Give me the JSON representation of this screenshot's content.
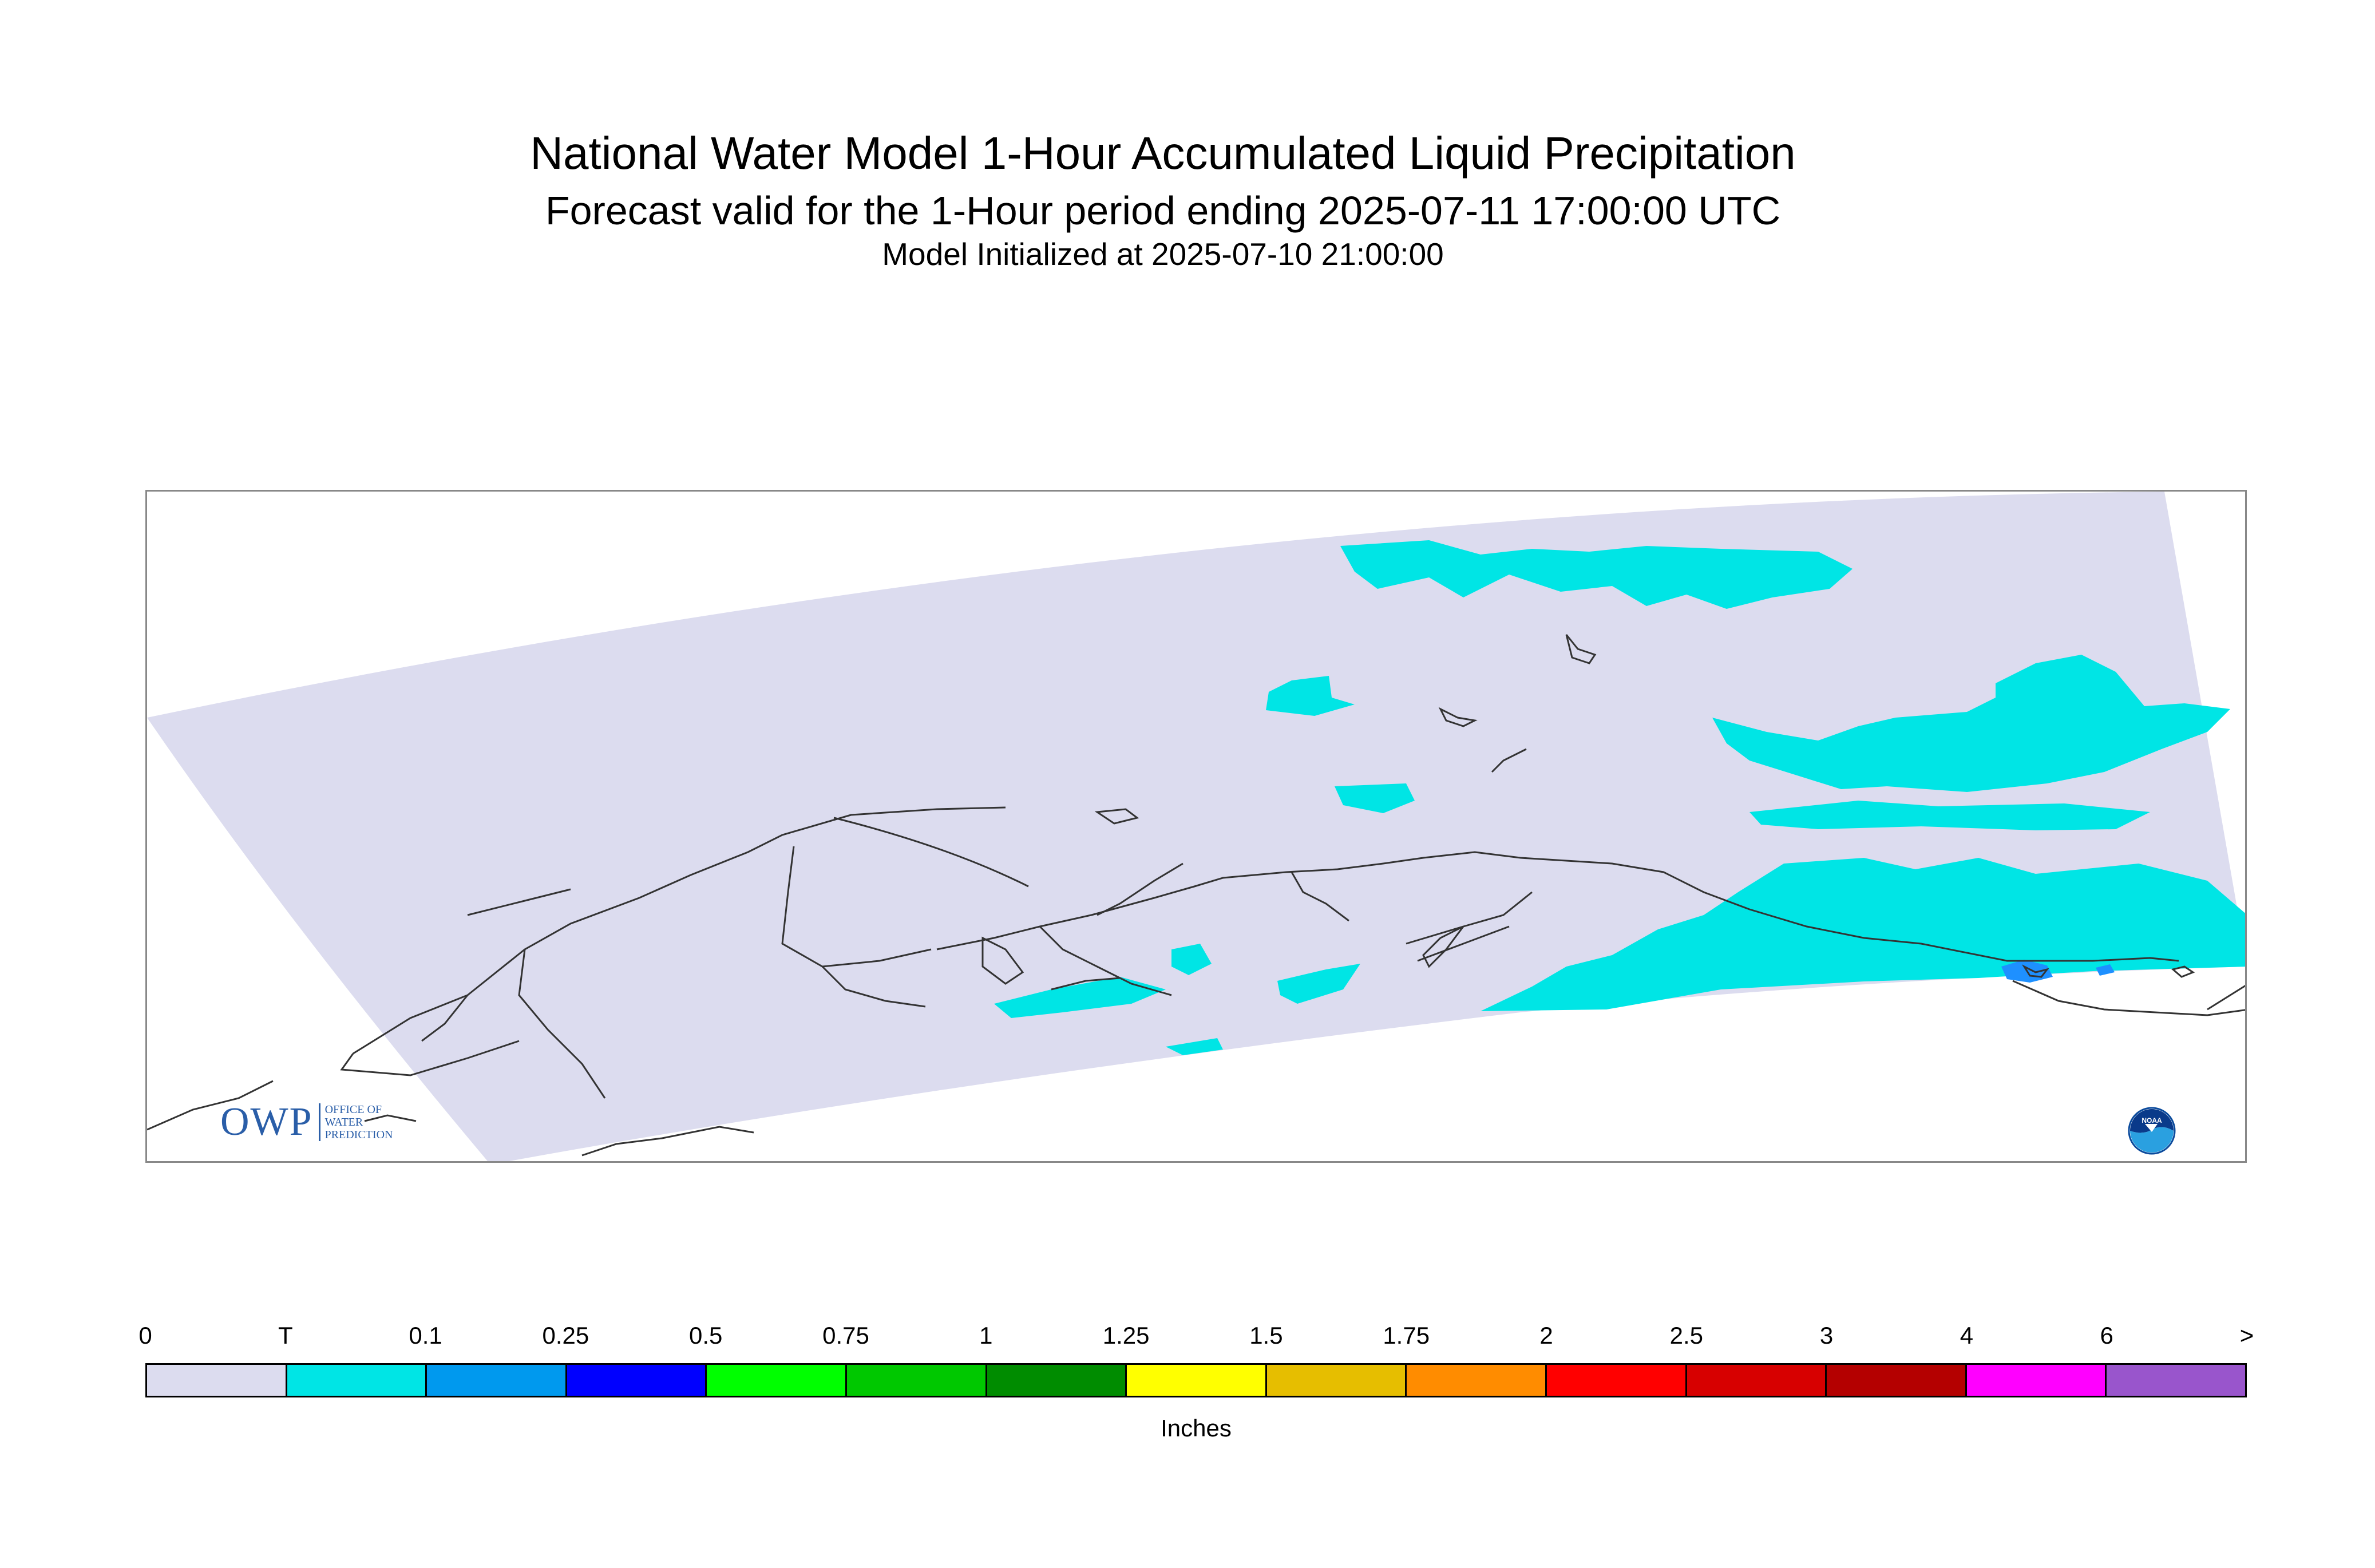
{
  "header": {
    "title": "National Water Model 1-Hour Accumulated Liquid Precipitation",
    "subtitle": "Forecast valid for the 1-Hour period ending 2025-07-11 17:00:00 UTC",
    "init_line": "Model Initialized at 2025-07-10 21:00:00"
  },
  "map": {
    "region": "Alaska",
    "domain_fill_color": "#dcdcef",
    "coastline_color": "#333333",
    "precip_trace_color": "#00e5e5",
    "precip_light_color": "#1e90ff"
  },
  "logos": {
    "owp": {
      "initials": "OWP",
      "line1": "OFFICE OF",
      "line2": "WATER",
      "line3": "PREDICTION"
    },
    "noaa": {
      "text": "NOAA"
    }
  },
  "legend": {
    "units": "Inches",
    "tick_labels": [
      "0",
      "T",
      "0.1",
      "0.25",
      "0.5",
      "0.75",
      "1",
      "1.25",
      "1.5",
      "1.75",
      "2",
      "2.5",
      "3",
      "4",
      "6",
      ">"
    ],
    "colors": [
      "#dcdcef",
      "#00e5e5",
      "#0099ee",
      "#0000ff",
      "#00ff00",
      "#00c800",
      "#008c00",
      "#ffff00",
      "#e6be00",
      "#ff8c00",
      "#ff0000",
      "#d70000",
      "#b40000",
      "#ff00ff",
      "#9955cc"
    ]
  }
}
